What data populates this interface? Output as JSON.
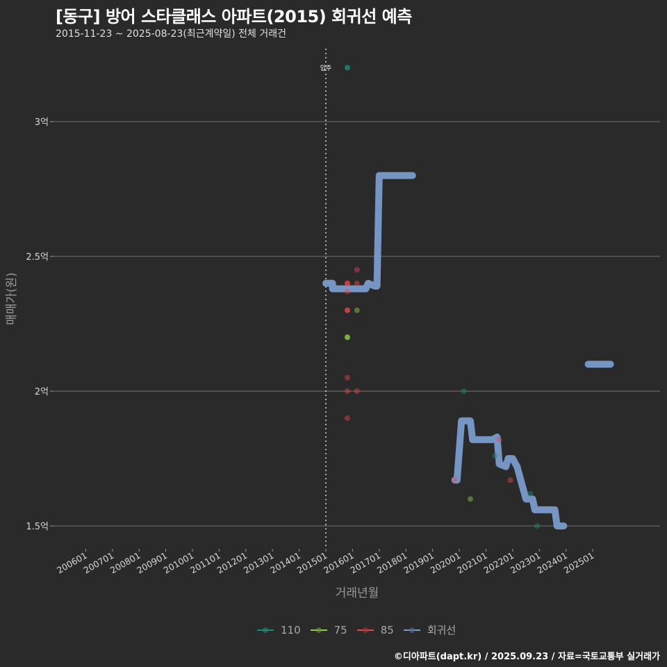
{
  "header": {
    "title": "[동구] 방어 스타클래스 아파트(2015) 회귀선 예측",
    "subtitle": "2015-11-23 ~ 2025-08-23(최근계약일) 전체 거래건"
  },
  "footer": {
    "credit": "©디아파트(dapt.kr) / 2025.09.23 / 자료=국토교통부 실거래가"
  },
  "annotation": {
    "label": "입주",
    "x_month": "201501"
  },
  "legend": [
    {
      "label": "110",
      "color": "#1f8a78"
    },
    {
      "label": "75",
      "color": "#8fd14f"
    },
    {
      "label": "85",
      "color": "#e8474a"
    },
    {
      "label": "회귀선",
      "color": "#7a9bcb"
    }
  ],
  "chart_data": {
    "type": "scatter",
    "title": "[동구] 방어 스타클래스 아파트(2015) 회귀선 예측",
    "subtitle": "2015-11-23 ~ 2025-08-23(최근계약일) 전체 거래건",
    "xlabel": "거래년월",
    "ylabel": "매매가(원)",
    "x_ticks": [
      "200601",
      "200701",
      "200801",
      "200901",
      "201001",
      "201101",
      "201201",
      "201301",
      "201401",
      "201501",
      "201601",
      "201701",
      "201801",
      "201901",
      "202001",
      "202101",
      "202201",
      "202301",
      "202401",
      "202501"
    ],
    "y_ticks": [
      {
        "value": 1.5,
        "label": "1.5억"
      },
      {
        "value": 2.0,
        "label": "2억"
      },
      {
        "value": 2.5,
        "label": "2.5억"
      },
      {
        "value": 3.0,
        "label": "3억"
      }
    ],
    "ylim": [
      1.43,
      3.28
    ],
    "grid": true,
    "legend_position": "bottom",
    "series": [
      {
        "name": "110",
        "color": "#1f8a78",
        "points": [
          {
            "x": "201511",
            "y": 3.2
          },
          {
            "x": "202003",
            "y": 2.0
          },
          {
            "x": "202105",
            "y": 1.76
          },
          {
            "x": "202209",
            "y": 1.62
          },
          {
            "x": "202212",
            "y": 1.5
          }
        ]
      },
      {
        "name": "75",
        "color": "#8fd14f",
        "points": [
          {
            "x": "201511",
            "y": 2.2
          },
          {
            "x": "201603",
            "y": 2.3
          },
          {
            "x": "202006",
            "y": 1.6
          }
        ]
      },
      {
        "name": "85",
        "color": "#e8474a",
        "points": [
          {
            "x": "201511",
            "y": 2.4
          },
          {
            "x": "201511",
            "y": 2.37
          },
          {
            "x": "201511",
            "y": 2.3
          },
          {
            "x": "201511",
            "y": 2.05
          },
          {
            "x": "201511",
            "y": 2.0
          },
          {
            "x": "201511",
            "y": 1.9
          },
          {
            "x": "201603",
            "y": 2.45
          },
          {
            "x": "201603",
            "y": 2.4
          },
          {
            "x": "201603",
            "y": 2.0
          },
          {
            "x": "201911",
            "y": 1.67
          },
          {
            "x": "202107",
            "y": 1.82
          },
          {
            "x": "202112",
            "y": 1.67
          }
        ]
      },
      {
        "name": "회귀선",
        "color": "#7a9bcb",
        "type": "step-line",
        "segments": [
          [
            {
              "x": "201501",
              "y": 2.4
            },
            {
              "x": "201504",
              "y": 2.4
            },
            {
              "x": "201504",
              "y": 2.38
            },
            {
              "x": "201607",
              "y": 2.38
            },
            {
              "x": "201608",
              "y": 2.4
            },
            {
              "x": "201611",
              "y": 2.39
            },
            {
              "x": "201612",
              "y": 2.39
            },
            {
              "x": "201701",
              "y": 2.8
            },
            {
              "x": "201804",
              "y": 2.8
            }
          ],
          [
            {
              "x": "201911",
              "y": 1.67
            },
            {
              "x": "201912",
              "y": 1.67
            },
            {
              "x": "202002",
              "y": 1.89
            },
            {
              "x": "202006",
              "y": 1.89
            },
            {
              "x": "202007",
              "y": 1.82
            },
            {
              "x": "202104",
              "y": 1.82
            },
            {
              "x": "202106",
              "y": 1.83
            },
            {
              "x": "202107",
              "y": 1.73
            },
            {
              "x": "202110",
              "y": 1.72
            },
            {
              "x": "202111",
              "y": 1.75
            },
            {
              "x": "202112",
              "y": 1.75
            },
            {
              "x": "202201",
              "y": 1.75
            },
            {
              "x": "202203",
              "y": 1.72
            },
            {
              "x": "202205",
              "y": 1.66
            },
            {
              "x": "202207",
              "y": 1.6
            },
            {
              "x": "202210",
              "y": 1.6
            },
            {
              "x": "202211",
              "y": 1.56
            },
            {
              "x": "202308",
              "y": 1.56
            },
            {
              "x": "202309",
              "y": 1.5
            },
            {
              "x": "202312",
              "y": 1.5
            }
          ],
          [
            {
              "x": "202411",
              "y": 2.1
            },
            {
              "x": "202509",
              "y": 2.1
            }
          ]
        ]
      }
    ]
  }
}
